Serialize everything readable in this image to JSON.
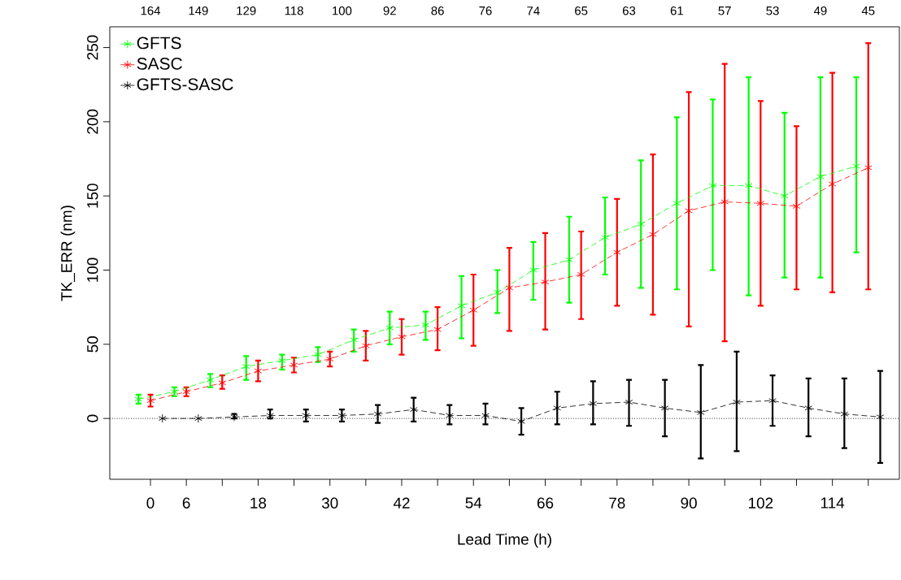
{
  "chart_data": {
    "type": "line",
    "xlabel": "Lead Time (h)",
    "ylabel": "TK_ERR (nm)",
    "xlim": [
      -6.8,
      125.2
    ],
    "ylim": [
      -41,
      264
    ],
    "xticks": [
      0,
      6,
      {
        "value": 12,
        "label": null
      },
      18,
      {
        "value": 24,
        "label": null
      },
      30,
      {
        "value": 36,
        "label": null
      },
      42,
      {
        "value": 48,
        "label": null
      },
      54,
      {
        "value": 60,
        "label": null
      },
      66,
      {
        "value": 72,
        "label": null
      },
      78,
      {
        "value": 84,
        "label": null
      },
      90,
      {
        "value": 96,
        "label": null
      },
      102,
      {
        "value": 108,
        "label": null
      },
      114,
      {
        "value": 120,
        "label": null
      }
    ],
    "yticks": [
      0,
      50,
      100,
      150,
      200,
      250
    ],
    "annotations": [
      "164",
      "149",
      "129",
      "118",
      "100",
      "92",
      "86",
      "76",
      "74",
      "65",
      "63",
      "61",
      "57",
      "53",
      "49",
      "45"
    ],
    "marker": "cross",
    "line_style": "dashed",
    "legend": "top left",
    "ref_lines": [
      {
        "axis": "y",
        "value": 0,
        "color": "#000000",
        "line_style": "dotted"
      }
    ],
    "series": [
      {
        "name": "GFTS",
        "color": "#00ff00",
        "x": [
          -2,
          4,
          10,
          16,
          22,
          28,
          34,
          40,
          46,
          52,
          58,
          64,
          70,
          76,
          82,
          88,
          94,
          100,
          106,
          112,
          118
        ],
        "values": [
          13,
          18,
          26,
          35,
          39,
          43,
          53,
          61,
          63,
          76,
          85,
          100,
          107,
          122,
          131,
          145,
          157,
          157,
          150,
          163,
          170
        ],
        "errors": [
          [
            10,
            16
          ],
          [
            15,
            21
          ],
          [
            21,
            30
          ],
          [
            26,
            42
          ],
          [
            33,
            43
          ],
          [
            38,
            48
          ],
          [
            45,
            60
          ],
          [
            50,
            72
          ],
          [
            53,
            72
          ],
          [
            54,
            96
          ],
          [
            71,
            100
          ],
          [
            80,
            119
          ],
          [
            78,
            136
          ],
          [
            97,
            149
          ],
          [
            88,
            174
          ],
          [
            87,
            203
          ],
          [
            100,
            215
          ],
          [
            83,
            230
          ],
          [
            95,
            206
          ],
          [
            95,
            230
          ],
          [
            112,
            230
          ]
        ]
      },
      {
        "name": "SASC",
        "color": "#ff0000",
        "x": [
          0,
          6,
          12,
          18,
          24,
          30,
          36,
          42,
          48,
          54,
          60,
          66,
          72,
          78,
          84,
          90,
          96,
          102,
          108,
          114,
          120
        ],
        "values": [
          12,
          18,
          24,
          32,
          36,
          40,
          49,
          55,
          60,
          73,
          88,
          92,
          97,
          112,
          124,
          140,
          146,
          145,
          143,
          158,
          169
        ],
        "errors": [
          [
            8,
            16
          ],
          [
            15,
            21
          ],
          [
            20,
            29
          ],
          [
            25,
            39
          ],
          [
            31,
            41
          ],
          [
            35,
            45
          ],
          [
            39,
            59
          ],
          [
            43,
            67
          ],
          [
            46,
            75
          ],
          [
            49,
            97
          ],
          [
            59,
            115
          ],
          [
            60,
            125
          ],
          [
            67,
            126
          ],
          [
            76,
            148
          ],
          [
            70,
            178
          ],
          [
            62,
            220
          ],
          [
            52,
            239
          ],
          [
            76,
            214
          ],
          [
            87,
            197
          ],
          [
            85,
            233
          ],
          [
            87,
            253
          ]
        ]
      },
      {
        "name": "GFTS-SASC",
        "color": "#000000",
        "x": [
          2,
          8,
          14,
          20,
          26,
          32,
          38,
          44,
          50,
          56,
          62,
          68,
          74,
          80,
          86,
          92,
          98,
          104,
          110,
          116,
          122
        ],
        "values": [
          0,
          0,
          1,
          2,
          2,
          2,
          3,
          6,
          2,
          2,
          -2,
          7,
          10,
          11,
          7,
          4,
          11,
          12,
          7,
          3,
          1
        ],
        "errors": [
          null,
          null,
          [
            0,
            3
          ],
          [
            0,
            6
          ],
          [
            -2,
            6
          ],
          [
            -2,
            6
          ],
          [
            -3,
            9
          ],
          [
            -2,
            14
          ],
          [
            -4,
            9
          ],
          [
            -4,
            10
          ],
          [
            -11,
            7
          ],
          [
            -4,
            18
          ],
          [
            -4,
            25
          ],
          [
            -5,
            26
          ],
          [
            -12,
            26
          ],
          [
            -27,
            36
          ],
          [
            -22,
            45
          ],
          [
            -5,
            29
          ],
          [
            -12,
            27
          ],
          [
            -20,
            27
          ],
          [
            -30,
            32
          ]
        ]
      }
    ]
  }
}
